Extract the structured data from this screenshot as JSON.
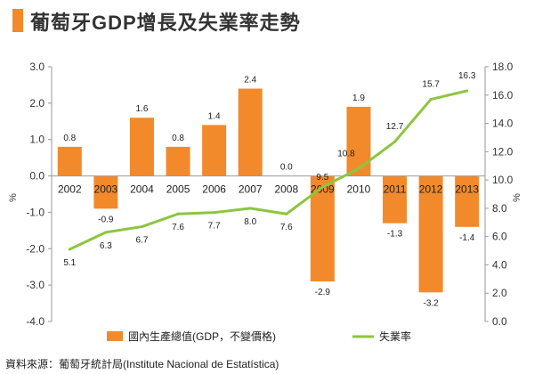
{
  "header": {
    "title": "葡萄牙GDP增長及失業率走勢"
  },
  "chart_data": {
    "type": "bar+line",
    "categories": [
      "2002",
      "2003",
      "2004",
      "2005",
      "2006",
      "2007",
      "2008",
      "2009",
      "2010",
      "2011",
      "2012",
      "2013"
    ],
    "series": [
      {
        "name": "國內生產總值(GDP，不變價格)",
        "type": "bar",
        "axis": "left",
        "color": "#f28a2c",
        "values": [
          0.8,
          -0.9,
          1.6,
          0.8,
          1.4,
          2.4,
          0.0,
          -2.9,
          1.9,
          -1.3,
          -3.2,
          -1.4
        ],
        "labels": [
          "0.8",
          "-0.9",
          "1.6",
          "0.8",
          "1.4",
          "2.4",
          "0.0",
          "-2.9",
          "1.9",
          "-1.3",
          "-3.2",
          "-1.4"
        ]
      },
      {
        "name": "失業率",
        "type": "line",
        "axis": "right",
        "color": "#8cc63f",
        "values": [
          5.1,
          6.3,
          6.7,
          7.6,
          7.7,
          8.0,
          7.6,
          9.5,
          10.8,
          12.7,
          15.7,
          16.3
        ],
        "labels": [
          "5.1",
          "6.3",
          "6.7",
          "7.6",
          "7.7",
          "8.0",
          "7.6",
          "9.5",
          "10.8",
          "12.7",
          "15.7",
          "16.3"
        ]
      }
    ],
    "left_axis": {
      "label": "%",
      "range": [
        -4.0,
        3.0
      ],
      "ticks": [
        "3.0",
        "2.0",
        "1.0",
        "0.0",
        "-1.0",
        "-2.0",
        "-3.0",
        "-4.0"
      ]
    },
    "right_axis": {
      "label": "%",
      "range": [
        0.0,
        18.0
      ],
      "ticks": [
        "18.0",
        "16.0",
        "14.0",
        "12.0",
        "10.0",
        "8.0",
        "6.0",
        "4.0",
        "2.0",
        "0.0"
      ]
    },
    "legend_position": "bottom"
  },
  "footer": {
    "source": "資料來源：葡萄牙統計局(Institute  Nacional  de Estatística)"
  }
}
